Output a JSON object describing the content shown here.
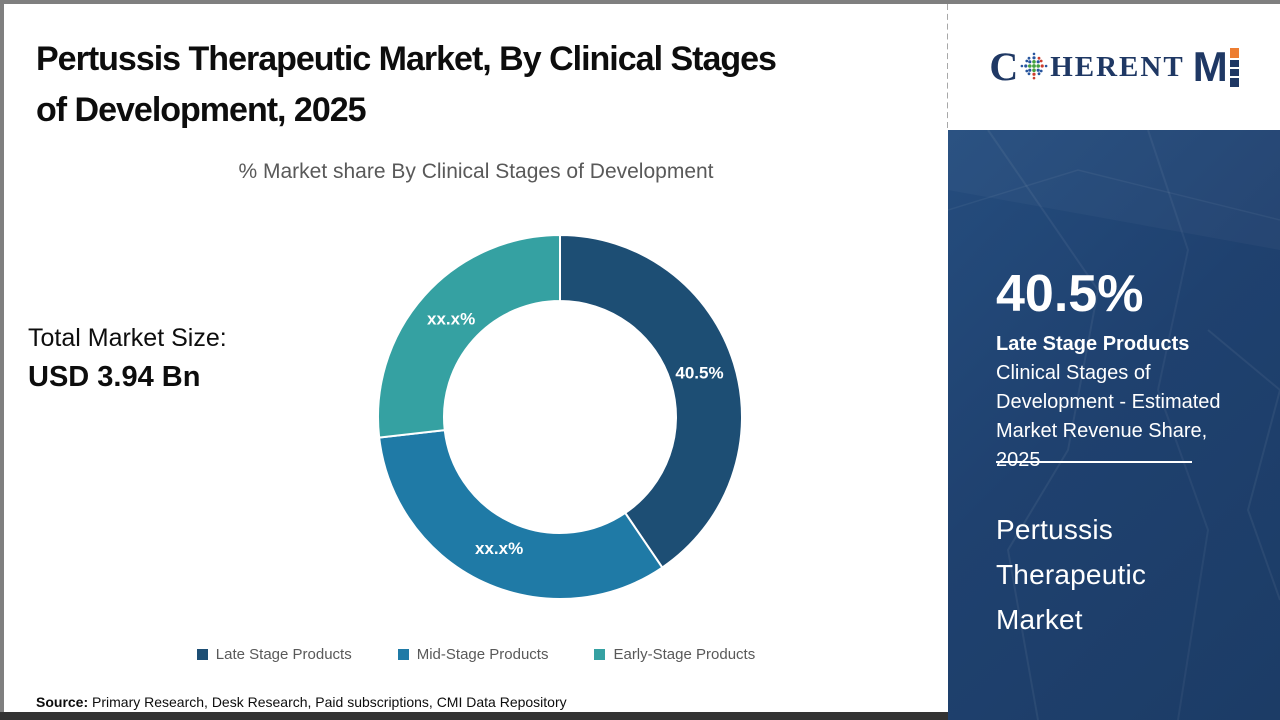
{
  "header": {
    "title_line1": "Pertussis Therapeutic Market, By Clinical Stages",
    "title_line2": "of Development, 2025"
  },
  "logo": {
    "name": "CoherentMI",
    "part_c": "C",
    "part_herent": "HERENT",
    "part_m": "M",
    "navy": "#1f3864",
    "orange": "#ed7d31"
  },
  "chart": {
    "subtitle": "% Market share By Clinical Stages of Development",
    "total_label": "Total Market Size:",
    "total_value": "USD 3.94 Bn"
  },
  "chart_data": {
    "type": "pie",
    "donut": true,
    "title": "% Market share By Clinical Stages of Development",
    "start_angle_deg": 0,
    "direction": "clockwise",
    "legend_position": "bottom",
    "segments": [
      {
        "name": "Late Stage Products",
        "value_pct": 40.5,
        "displayed_label": "40.5%",
        "color": "#1d4e74"
      },
      {
        "name": "Mid-Stage Products",
        "value_pct": 32.7,
        "displayed_label": "xx.x%",
        "color": "#1f7aa6"
      },
      {
        "name": "Early-Stage Products",
        "value_pct": 26.8,
        "displayed_label": "xx.x%",
        "color": "#35a1a2"
      }
    ]
  },
  "sidebar": {
    "stat_value": "40.5%",
    "stat_name": "Late Stage Products",
    "stat_desc_lines": [
      "Clinical Stages of",
      "Development - Estimated",
      "Market Revenue Share,"
    ],
    "stat_year": "2025",
    "market_name_lines": [
      "Pertussis",
      "Therapeutic",
      "Market"
    ],
    "background_color": "#1f416f"
  },
  "footer": {
    "source_label": "Source:",
    "source_text": " Primary Research, Desk Research, Paid subscriptions, CMI Data Repository"
  },
  "colors": {
    "title_text": "#0d0d0d",
    "subtitle_text": "#595959",
    "legend_text": "#595959",
    "frame_border": "#7f7f7f",
    "bottom_bar": "#333333",
    "donut_label_text": "#ffffff"
  }
}
